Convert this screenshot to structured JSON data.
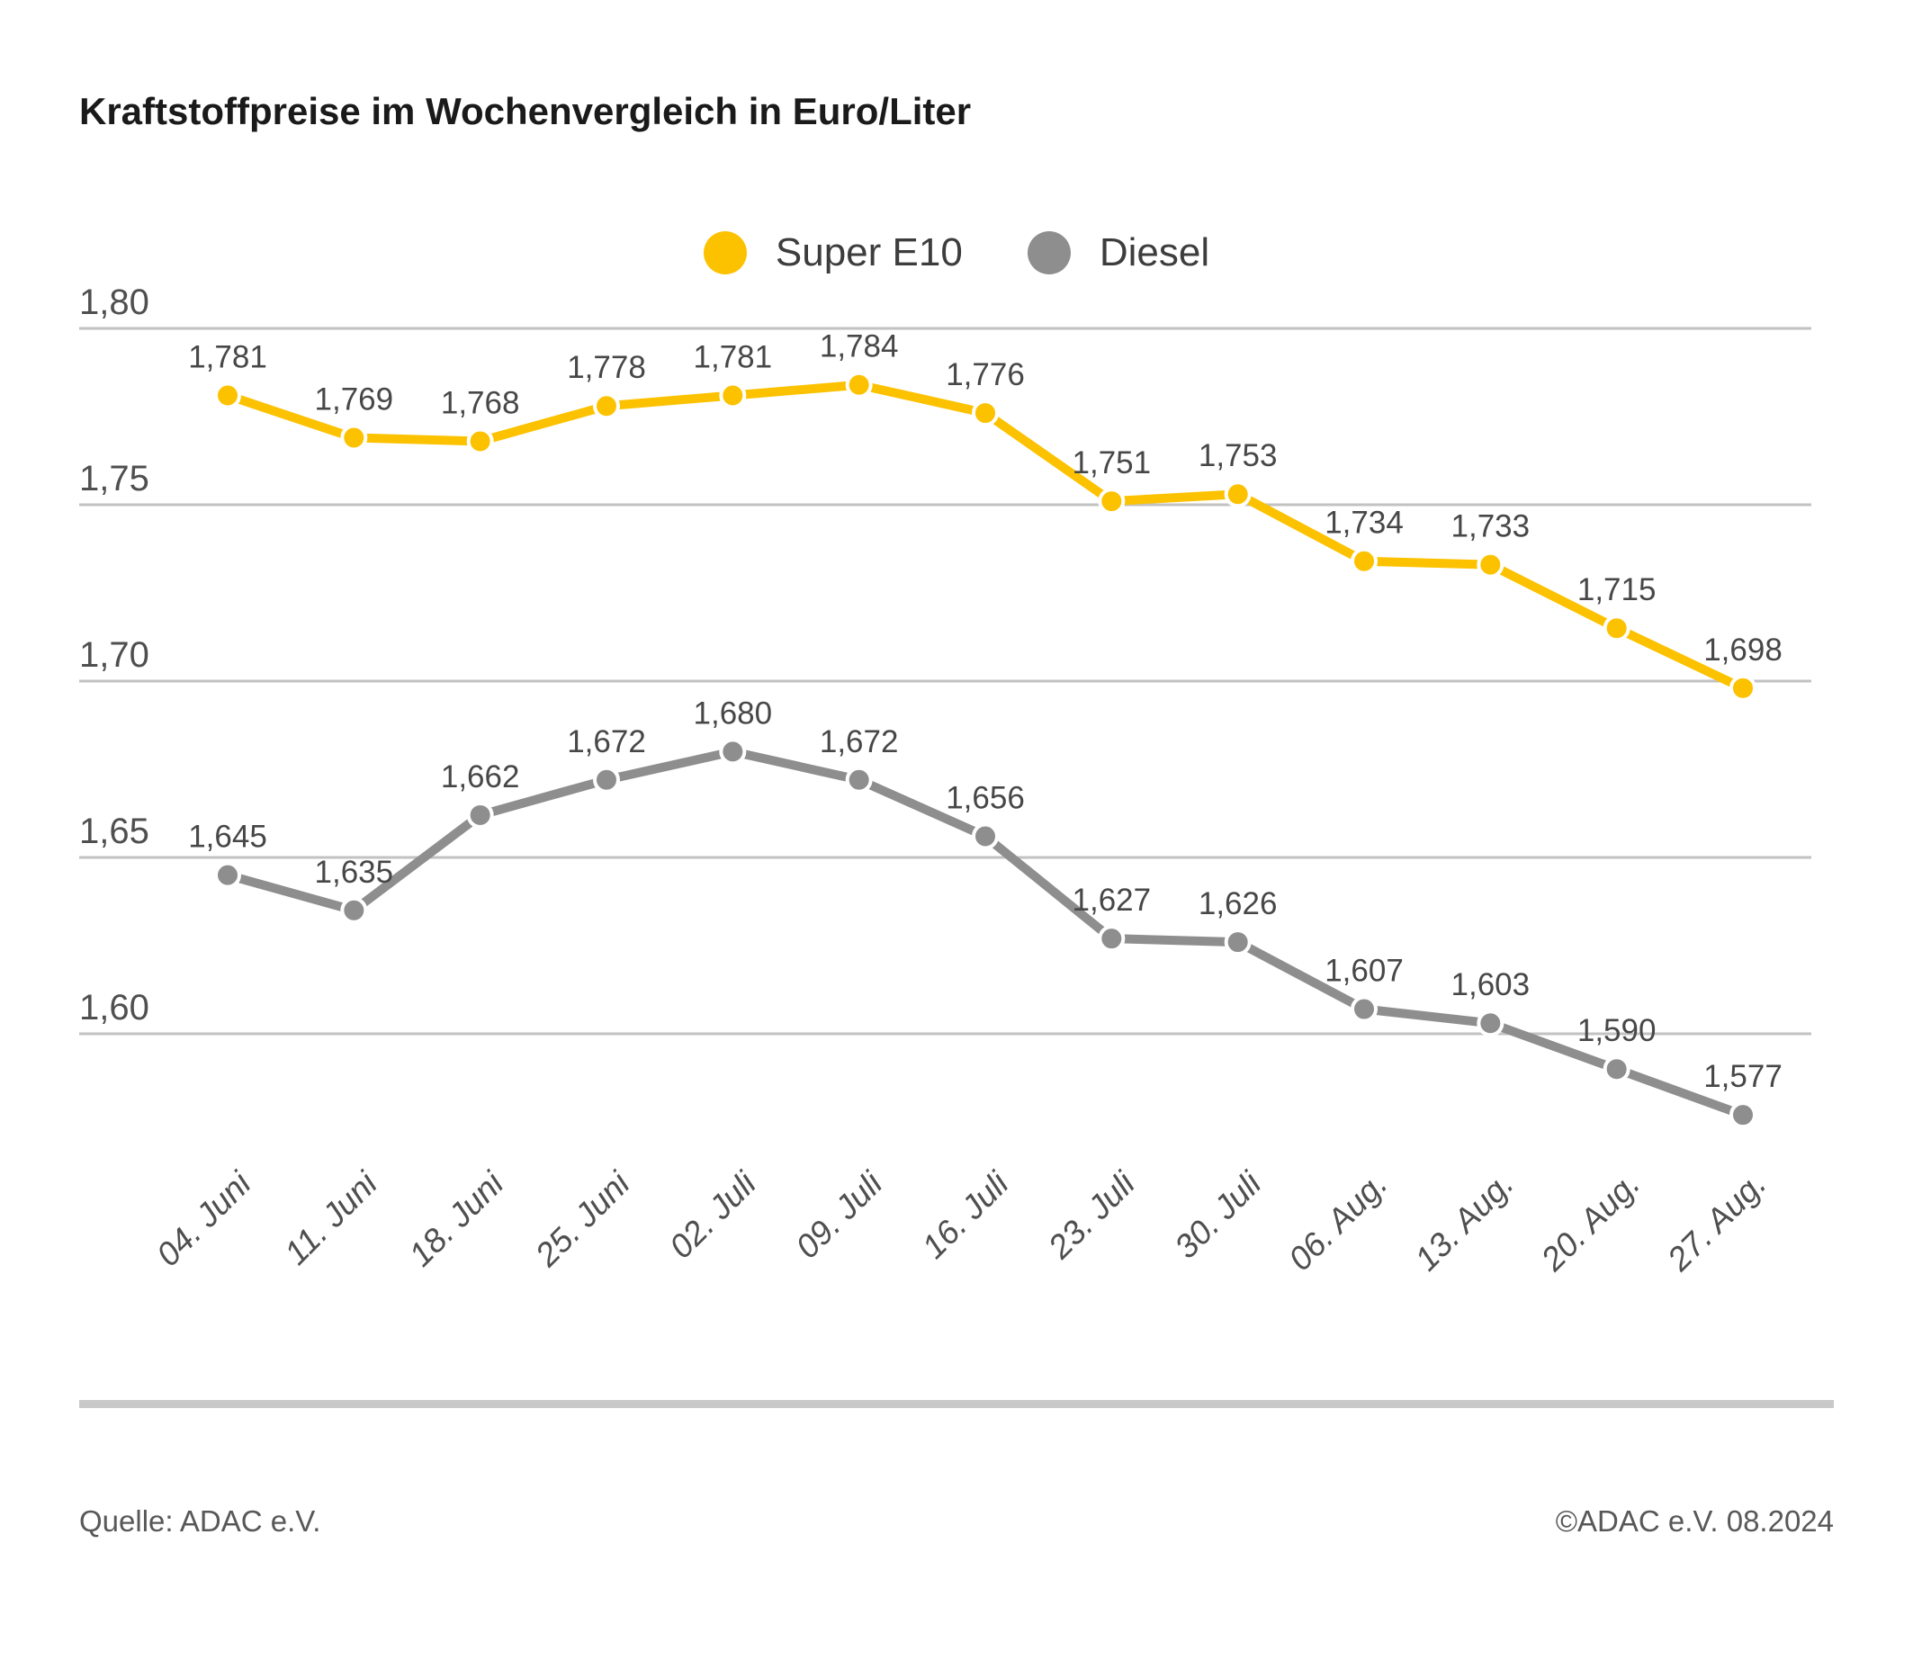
{
  "title": "Kraftstoffpreise im Wochenvergleich in Euro/Liter",
  "footer": {
    "source": "Quelle: ADAC e.V.",
    "copyright": "©ADAC e.V. 08.2024"
  },
  "colors": {
    "background": "#ffffff",
    "title": "#1a1a1a",
    "grid": "#c2c2c2",
    "axis_text": "#4f4f4f",
    "data_label": "#474747",
    "x_label": "#4f4f4f",
    "marker_ring": "#ffffff",
    "divider": "#c9c9c9",
    "footer_text": "#585858",
    "super_e10": "#fcc200",
    "diesel": "#8e8e8e"
  },
  "chart_data": {
    "type": "line",
    "title": "Kraftstoffpreise im Wochenvergleich in Euro/Liter",
    "xlabel": "",
    "ylabel": "Euro/Liter",
    "categories": [
      "04. Juni",
      "11. Juni",
      "18. Juni",
      "25. Juni",
      "02. Juli",
      "09. Juli",
      "16. Juli",
      "23. Juli",
      "30. Juli",
      "06. Aug.",
      "13. Aug.",
      "20. Aug.",
      "27. Aug."
    ],
    "series": [
      {
        "name": "Super E10",
        "color": "#fcc200",
        "values": [
          1.781,
          1.769,
          1.768,
          1.778,
          1.781,
          1.784,
          1.776,
          1.751,
          1.753,
          1.734,
          1.733,
          1.715,
          1.698
        ]
      },
      {
        "name": "Diesel",
        "color": "#8e8e8e",
        "values": [
          1.645,
          1.635,
          1.662,
          1.672,
          1.68,
          1.672,
          1.656,
          1.627,
          1.626,
          1.607,
          1.603,
          1.59,
          1.577
        ]
      }
    ],
    "yticks": [
      1.8,
      1.75,
      1.7,
      1.65,
      1.6
    ],
    "ylim": [
      1.56,
      1.815
    ],
    "grid": true,
    "gridlines": "horizontal",
    "legend_position": "top-center",
    "decimal_separator": ",",
    "data_labels": true,
    "x_label_rotation_deg": -45
  }
}
